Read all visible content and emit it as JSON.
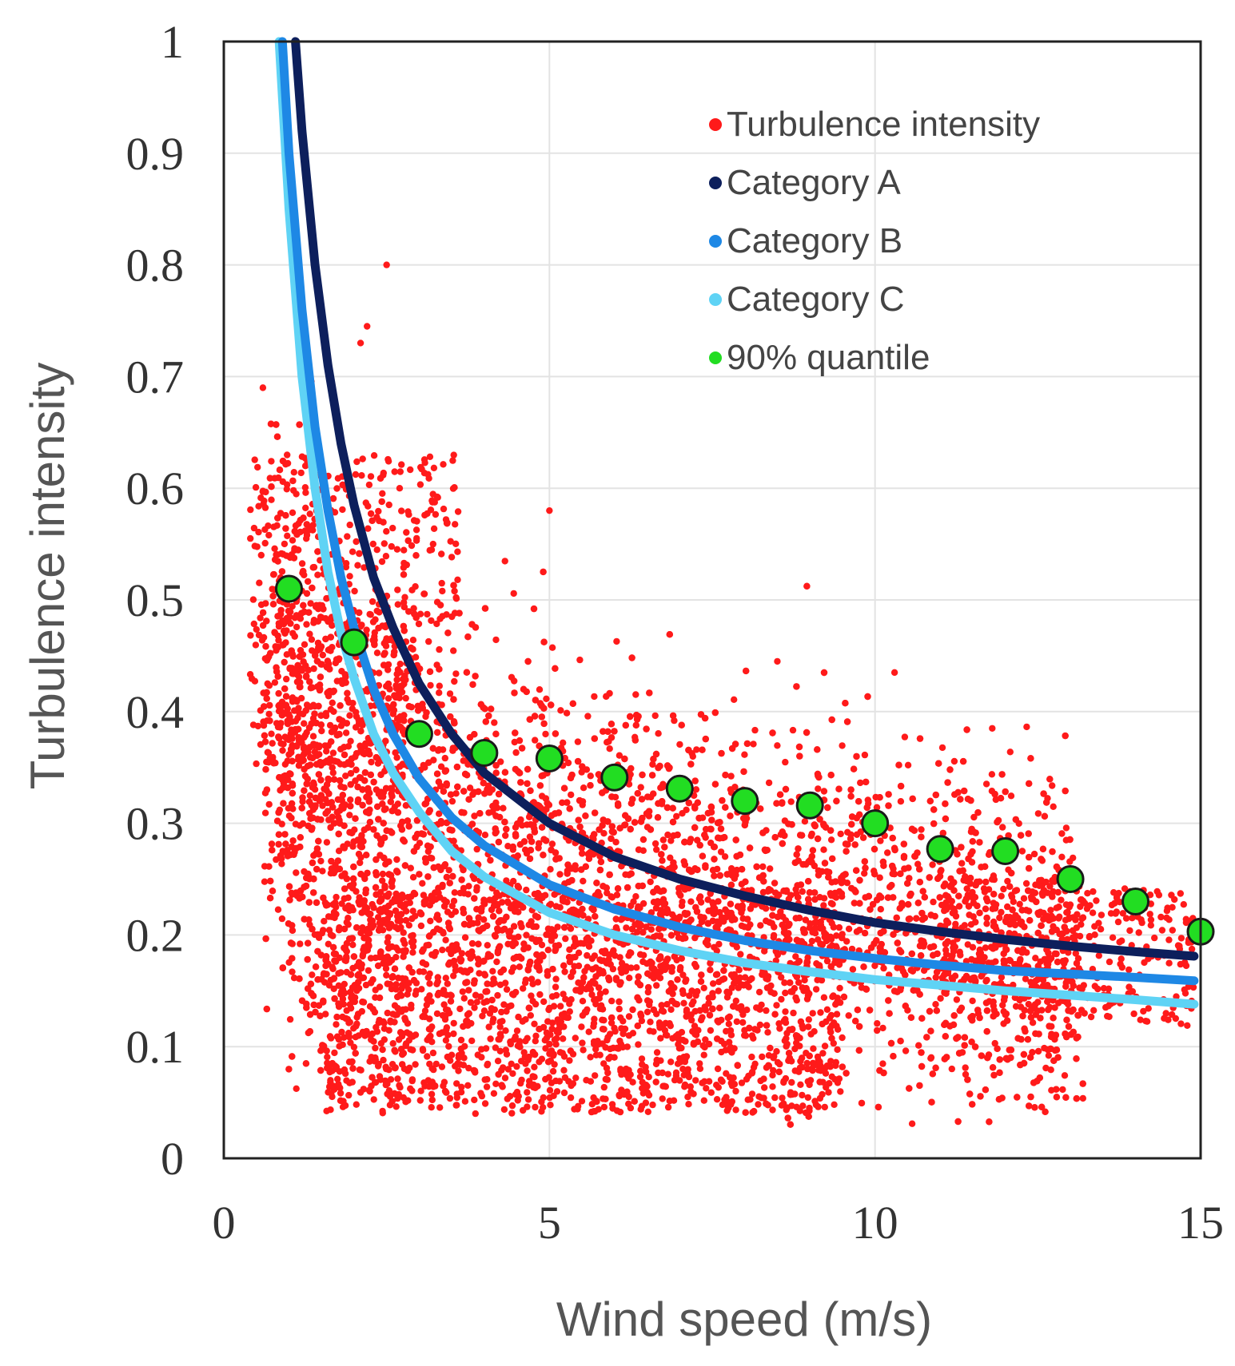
{
  "chart_data": {
    "type": "scatter",
    "title": "",
    "xlabel": "Wind speed (m/s)",
    "ylabel": "Turbulence intensity",
    "xlim": [
      0,
      15
    ],
    "ylim": [
      0,
      1
    ],
    "x_ticks": [
      0,
      5,
      10,
      15
    ],
    "y_ticks": [
      0,
      0.1,
      0.2,
      0.3,
      0.4,
      0.5,
      0.6,
      0.7,
      0.8,
      0.9,
      1
    ],
    "x_tick_labels": [
      "0",
      "5",
      "10",
      "15"
    ],
    "y_tick_labels": [
      "0",
      "0.1",
      "0.2",
      "0.3",
      "0.4",
      "0.5",
      "0.6",
      "0.7",
      "0.8",
      "0.9",
      "1"
    ],
    "grid": true,
    "legend_position": "top-right",
    "series": [
      {
        "name": "Turbulence intensity",
        "kind": "scatter-cloud",
        "color": "#ff1a1a",
        "x_range": [
          0.3,
          14.9
        ],
        "y_range": [
          0.03,
          0.8
        ],
        "note_points": [
          {
            "x": 2.5,
            "y": 0.8
          },
          {
            "x": 2.2,
            "y": 0.745
          },
          {
            "x": 2.1,
            "y": 0.73
          },
          {
            "x": 0.6,
            "y": 0.69
          },
          {
            "x": 5.0,
            "y": 0.58
          },
          {
            "x": 2.7,
            "y": 0.6
          },
          {
            "x": 10.3,
            "y": 0.435
          },
          {
            "x": 11.8,
            "y": 0.385
          },
          {
            "x": 8.5,
            "y": 0.445
          }
        ]
      },
      {
        "name": "Category   A",
        "kind": "curve",
        "color": "#0d1f5c",
        "x": [
          1.1,
          1.2,
          1.4,
          1.6,
          1.8,
          2.0,
          2.3,
          2.6,
          3.0,
          3.5,
          4.0,
          5.0,
          6.0,
          7.0,
          8.0,
          9.0,
          10.0,
          11.0,
          12.0,
          13.0,
          14.0,
          14.9
        ],
        "y": [
          1.0,
          0.92,
          0.8,
          0.71,
          0.64,
          0.585,
          0.52,
          0.475,
          0.425,
          0.38,
          0.345,
          0.3,
          0.27,
          0.25,
          0.235,
          0.222,
          0.211,
          0.203,
          0.196,
          0.19,
          0.185,
          0.181
        ]
      },
      {
        "name": "Category   B",
        "kind": "curve",
        "color": "#1e88e5",
        "x": [
          0.9,
          1.0,
          1.2,
          1.4,
          1.6,
          1.8,
          2.0,
          2.3,
          2.6,
          3.0,
          3.5,
          4.0,
          5.0,
          6.0,
          7.0,
          8.0,
          9.0,
          10.0,
          11.0,
          12.0,
          13.0,
          14.0,
          14.9
        ],
        "y": [
          1.0,
          0.9,
          0.76,
          0.655,
          0.58,
          0.52,
          0.475,
          0.42,
          0.38,
          0.34,
          0.305,
          0.28,
          0.245,
          0.223,
          0.207,
          0.195,
          0.186,
          0.179,
          0.173,
          0.168,
          0.165,
          0.162,
          0.159
        ]
      },
      {
        "name": "Category   C",
        "kind": "curve",
        "color": "#5fd3f5",
        "x": [
          0.85,
          1.0,
          1.2,
          1.4,
          1.6,
          1.8,
          2.0,
          2.3,
          2.6,
          3.0,
          3.5,
          4.0,
          5.0,
          6.0,
          7.0,
          8.0,
          9.0,
          10.0,
          11.0,
          12.0,
          13.0,
          14.0,
          14.9
        ],
        "y": [
          1.0,
          0.85,
          0.7,
          0.6,
          0.525,
          0.47,
          0.43,
          0.38,
          0.345,
          0.31,
          0.275,
          0.252,
          0.22,
          0.2,
          0.186,
          0.175,
          0.167,
          0.16,
          0.155,
          0.15,
          0.146,
          0.142,
          0.138
        ]
      },
      {
        "name": "90% quantile",
        "kind": "markers",
        "color": "#22dd22",
        "x": [
          1,
          2,
          3,
          4,
          5,
          6,
          7,
          8,
          9,
          10,
          11,
          12,
          13,
          14,
          15
        ],
        "y": [
          0.51,
          0.462,
          0.38,
          0.363,
          0.358,
          0.341,
          0.331,
          0.32,
          0.316,
          0.3,
          0.277,
          0.275,
          0.25,
          0.23,
          0.203
        ]
      }
    ],
    "legend": [
      {
        "label": "Turbulence intensity",
        "color": "#ff1a1a"
      },
      {
        "label": "Category   A",
        "color": "#0d1f5c"
      },
      {
        "label": "Category   B",
        "color": "#1e88e5"
      },
      {
        "label": "Category   C",
        "color": "#5fd3f5"
      },
      {
        "label": "90% quantile",
        "color": "#22dd22"
      }
    ]
  }
}
